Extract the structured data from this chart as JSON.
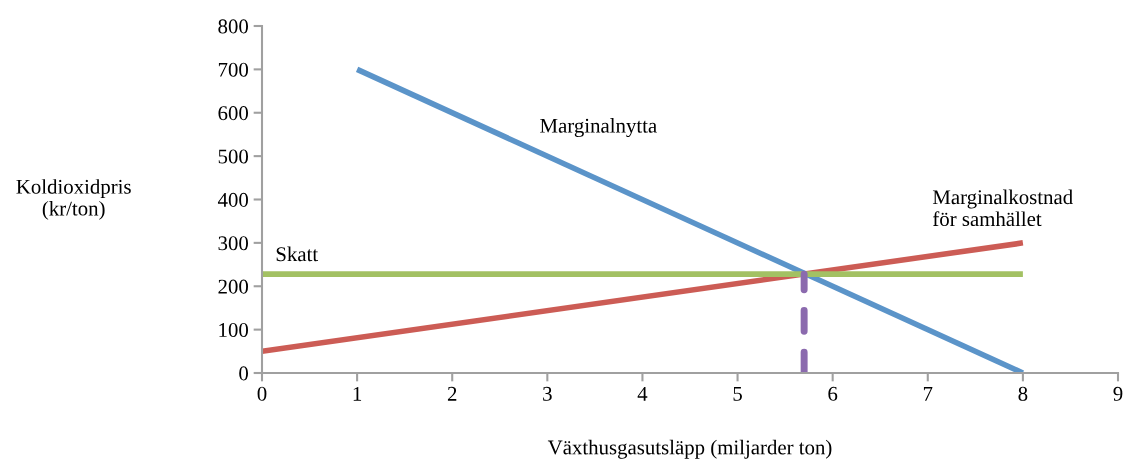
{
  "chart_data": {
    "type": "line",
    "xlabel": "Växthusgasutsläpp (miljarder ton)",
    "ylabel": "Koldioxidpris\n(kr/ton)",
    "xlim": [
      0,
      9
    ],
    "xticks": [
      0,
      1,
      2,
      3,
      4,
      5,
      6,
      7,
      8,
      9
    ],
    "ylim": [
      0,
      800
    ],
    "yticks": [
      0,
      100,
      200,
      300,
      400,
      500,
      600,
      700,
      800
    ],
    "grid": false,
    "legend": false,
    "marker": "none",
    "series": [
      {
        "name": "Marginalnytta",
        "color": "#5b94c9",
        "x": [
          1,
          8
        ],
        "values": [
          700,
          0
        ]
      },
      {
        "name": "Marginalkostnad\nför samhället",
        "color": "#cc5c55",
        "x": [
          0,
          8
        ],
        "values": [
          50,
          300
        ]
      },
      {
        "name": "Skatt",
        "color": "#a3c163",
        "x": [
          0,
          8
        ],
        "values": [
          228,
          228
        ]
      },
      {
        "color": "#8b6aae",
        "x": [
          5.7,
          5.7
        ],
        "values": [
          0,
          228
        ],
        "line_style": "dashed"
      }
    ]
  }
}
